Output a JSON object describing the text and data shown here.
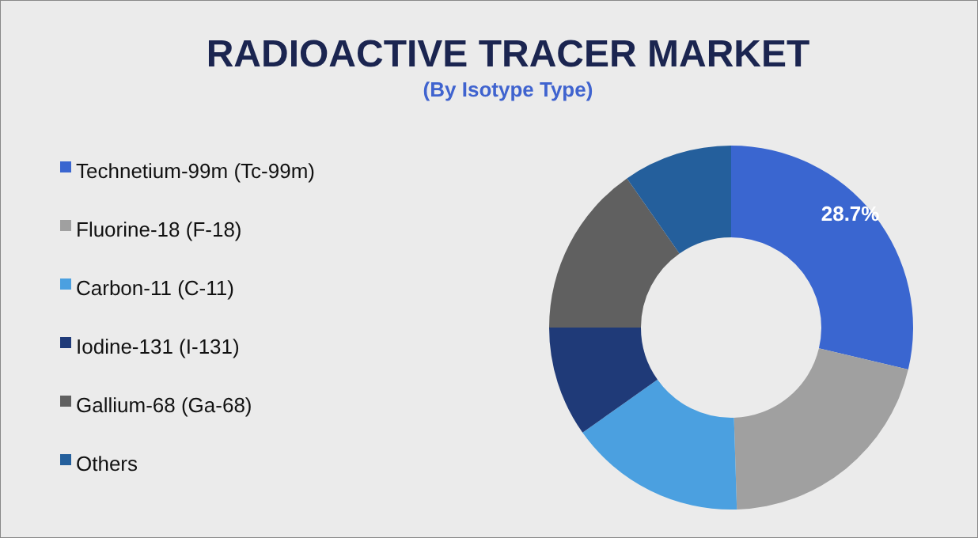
{
  "chart_data": {
    "type": "donut",
    "title": "RADIOACTIVE TRACER MARKET",
    "subtitle": "(By Isotype Type)",
    "categories": [
      "Technetium-99m (Tc-99m)",
      "Fluorine-18 (F-18)",
      "Carbon-11 (C-11)",
      "Iodine-131 (I-131)",
      "Gallium-68 (Ga-68)",
      "Others"
    ],
    "values": [
      28.7,
      20.8,
      15.7,
      9.8,
      15.3,
      9.7
    ],
    "colors": [
      "#3a66d0",
      "#a0a0a0",
      "#4ba0e0",
      "#1f3a78",
      "#606060",
      "#245f9c"
    ],
    "value_labels": [
      "28.7%",
      null,
      null,
      null,
      null,
      null
    ],
    "legend": "left"
  }
}
